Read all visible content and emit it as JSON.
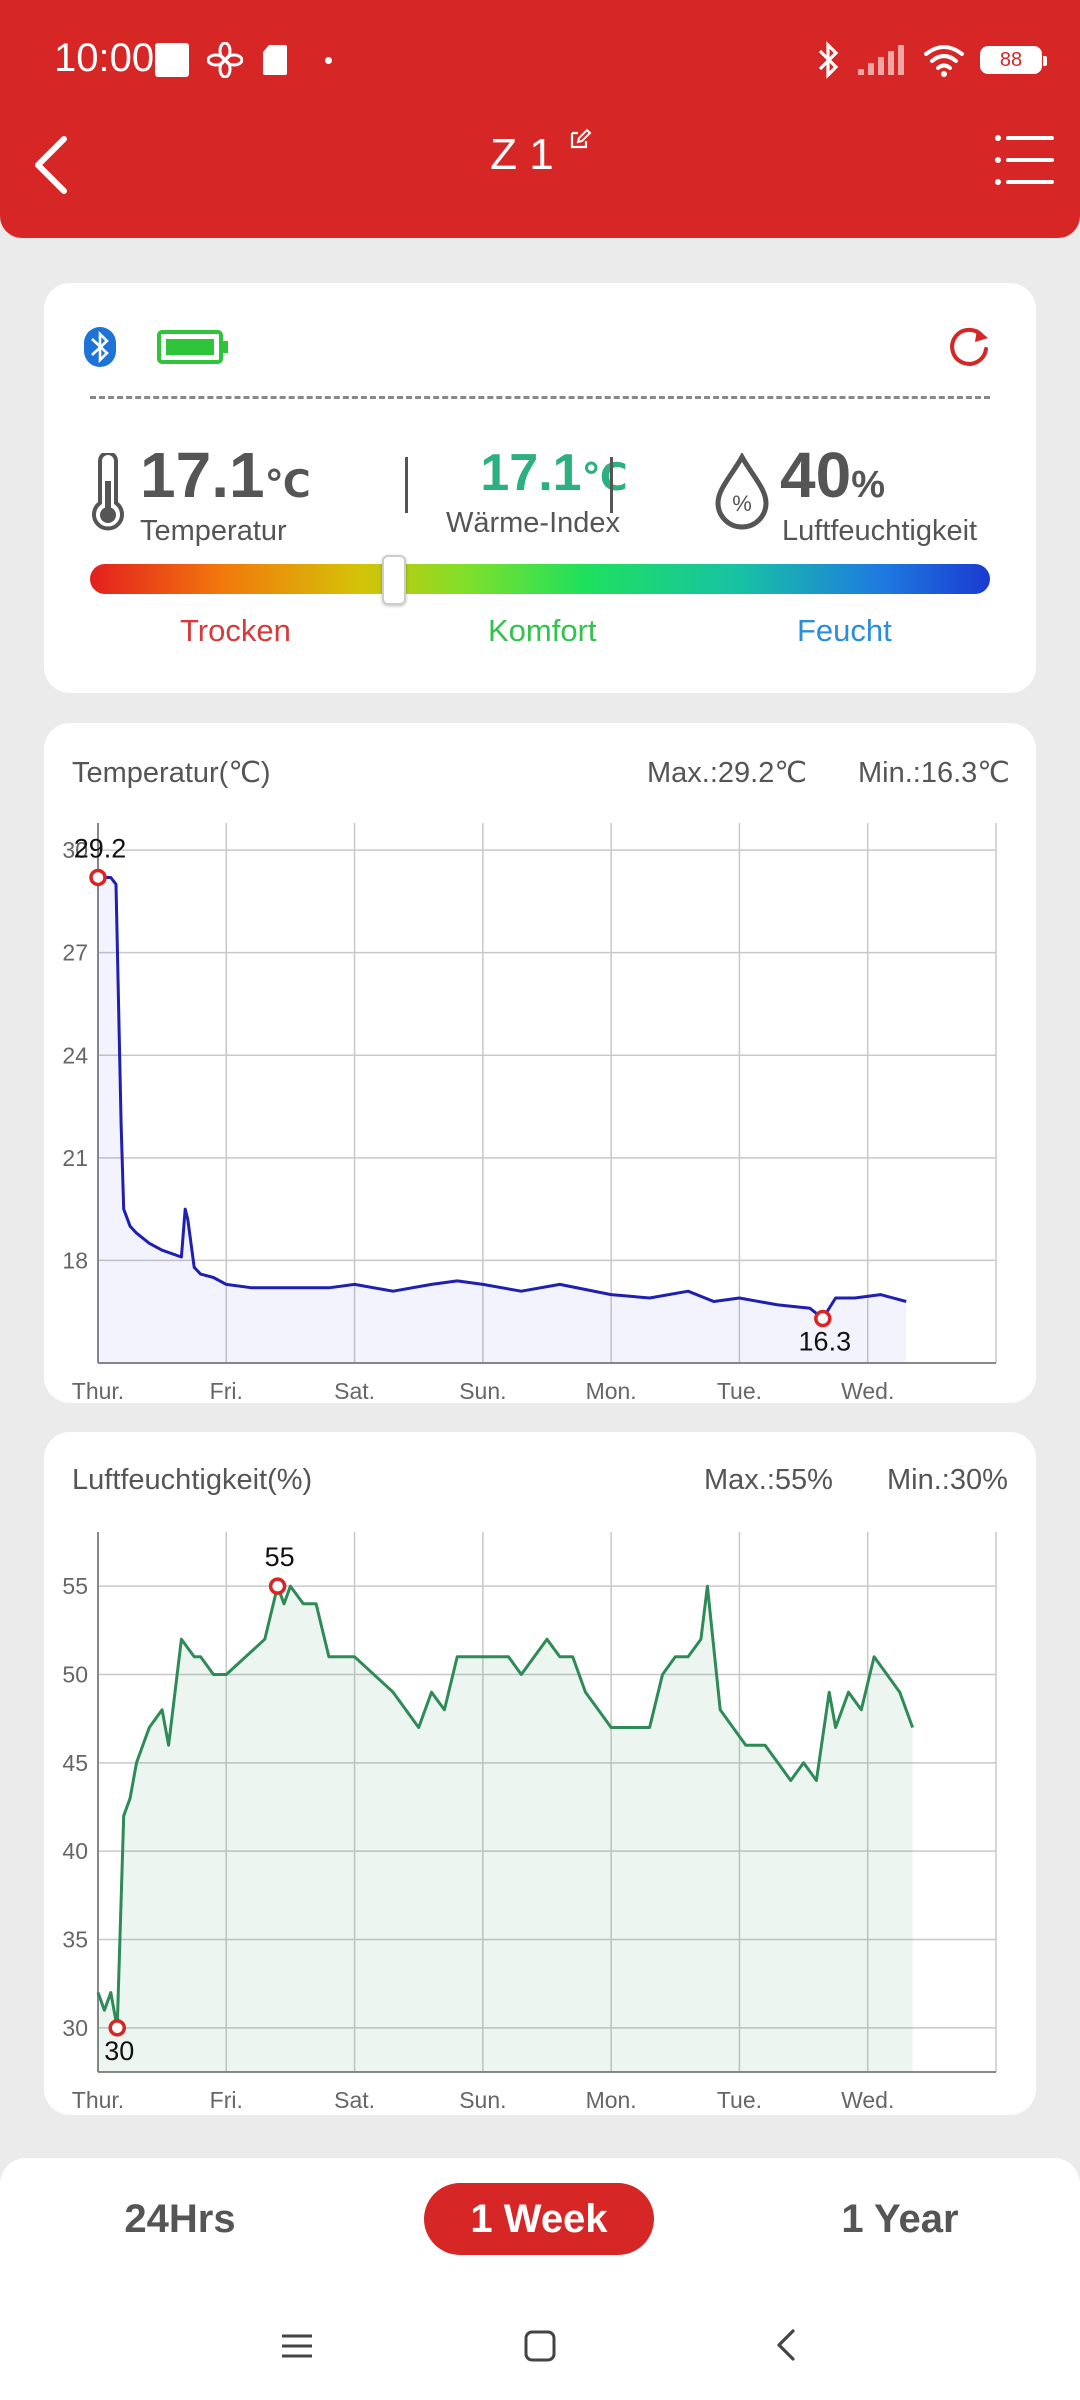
{
  "status_bar": {
    "time": "10:00",
    "battery": "88"
  },
  "header": {
    "title": "Z 1"
  },
  "icons": {
    "back": "arrow-left-icon",
    "edit": "edit-icon",
    "menu": "list-menu-icon",
    "bluetooth": "bluetooth-icon",
    "device_battery": "battery-full-icon",
    "refresh": "refresh-icon",
    "thermometer": "thermometer-icon",
    "humidity": "water-drop-percent-icon"
  },
  "readings": {
    "temperature": {
      "value": "17.1",
      "unit": "℃",
      "label": "Temperatur"
    },
    "heat_index": {
      "value": "17.1",
      "unit": "℃",
      "label": "Wärme-Index"
    },
    "humidity": {
      "value": "40",
      "unit": "%",
      "label": "Luftfeuchtigkeit"
    }
  },
  "comfort_scale": {
    "labels": [
      "Trocken",
      "Komfort",
      "Feucht"
    ],
    "colors": [
      "#d63b3b",
      "#33c24d",
      "#2a8fd8"
    ],
    "slider_position": 0.33
  },
  "colors": {
    "accent": "#d62626",
    "temp_line": "#1f1fb0",
    "humidity_line": "#2e8b57",
    "heat_index": "#2bb080"
  },
  "temp_chart": {
    "title": "Temperatur(℃)",
    "max_label": "Max.:29.2℃",
    "min_label": "Min.:16.3℃",
    "max_marker": "29.2",
    "min_marker": "16.3"
  },
  "humidity_chart": {
    "title": "Luftfeuchtigkeit(%)",
    "max_label": "Max.:55%",
    "min_label": "Min.:30%",
    "max_marker": "55",
    "min_marker": "30"
  },
  "chart_data": [
    {
      "type": "area",
      "title": "Temperatur(℃)",
      "categories": [
        "Thur.",
        "Fri.",
        "Sat.",
        "Sun.",
        "Mon.",
        "Tue.",
        "Wed."
      ],
      "yticks": [
        30,
        27,
        24,
        21,
        18
      ],
      "ylim": [
        15,
        30.5
      ],
      "x": [
        0.0,
        0.1,
        0.14,
        0.18,
        0.2,
        0.25,
        0.3,
        0.4,
        0.5,
        0.65,
        0.68,
        0.7,
        0.75,
        0.8,
        0.9,
        1.0,
        1.2,
        1.5,
        1.8,
        2.0,
        2.3,
        2.6,
        2.8,
        3.0,
        3.3,
        3.6,
        4.0,
        4.3,
        4.6,
        4.8,
        5.0,
        5.3,
        5.55,
        5.65,
        5.75,
        5.9,
        6.1,
        6.3
      ],
      "values": [
        29.2,
        29.2,
        29.0,
        22.0,
        19.5,
        19.0,
        18.8,
        18.5,
        18.3,
        18.1,
        19.5,
        19.2,
        17.8,
        17.6,
        17.5,
        17.3,
        17.2,
        17.2,
        17.2,
        17.3,
        17.1,
        17.3,
        17.4,
        17.3,
        17.1,
        17.3,
        17.0,
        16.9,
        17.1,
        16.8,
        16.9,
        16.7,
        16.6,
        16.3,
        16.9,
        16.9,
        17.0,
        16.8
      ],
      "max": 29.2,
      "min": 16.3,
      "grid": true
    },
    {
      "type": "area",
      "title": "Luftfeuchtigkeit(%)",
      "categories": [
        "Thur.",
        "Fri.",
        "Sat.",
        "Sun.",
        "Mon.",
        "Tue.",
        "Wed."
      ],
      "yticks": [
        55,
        50,
        45,
        40,
        35,
        30
      ],
      "ylim": [
        27.5,
        57.5
      ],
      "x": [
        0.0,
        0.05,
        0.1,
        0.15,
        0.2,
        0.25,
        0.3,
        0.4,
        0.5,
        0.55,
        0.65,
        0.75,
        0.8,
        0.9,
        1.0,
        1.3,
        1.4,
        1.45,
        1.5,
        1.6,
        1.7,
        1.8,
        1.9,
        2.0,
        2.3,
        2.5,
        2.6,
        2.7,
        2.8,
        3.0,
        3.2,
        3.3,
        3.4,
        3.5,
        3.6,
        3.7,
        3.8,
        3.9,
        4.0,
        4.3,
        4.4,
        4.5,
        4.6,
        4.7,
        4.75,
        4.85,
        4.95,
        5.05,
        5.2,
        5.3,
        5.4,
        5.5,
        5.6,
        5.7,
        5.75,
        5.85,
        5.95,
        6.05,
        6.15,
        6.25,
        6.35
      ],
      "values": [
        32,
        31,
        32,
        30,
        42,
        43,
        45,
        47,
        48,
        46,
        52,
        51,
        51,
        50,
        50,
        52,
        55,
        54,
        55,
        54,
        54,
        51,
        51,
        51,
        49,
        47,
        49,
        48,
        51,
        51,
        51,
        50,
        51,
        52,
        51,
        51,
        49,
        48,
        47,
        47,
        50,
        51,
        51,
        52,
        55,
        48,
        47,
        46,
        46,
        45,
        44,
        45,
        44,
        49,
        47,
        49,
        48,
        51,
        50,
        49,
        47
      ],
      "max": 55,
      "min": 30,
      "grid": true
    }
  ],
  "range_tabs": [
    "24Hrs",
    "1 Week",
    "1 Year"
  ],
  "active_range": "1 Week",
  "nav": {
    "menu": "menu-icon",
    "home": "home-square-icon",
    "back": "back-chevron-icon"
  }
}
